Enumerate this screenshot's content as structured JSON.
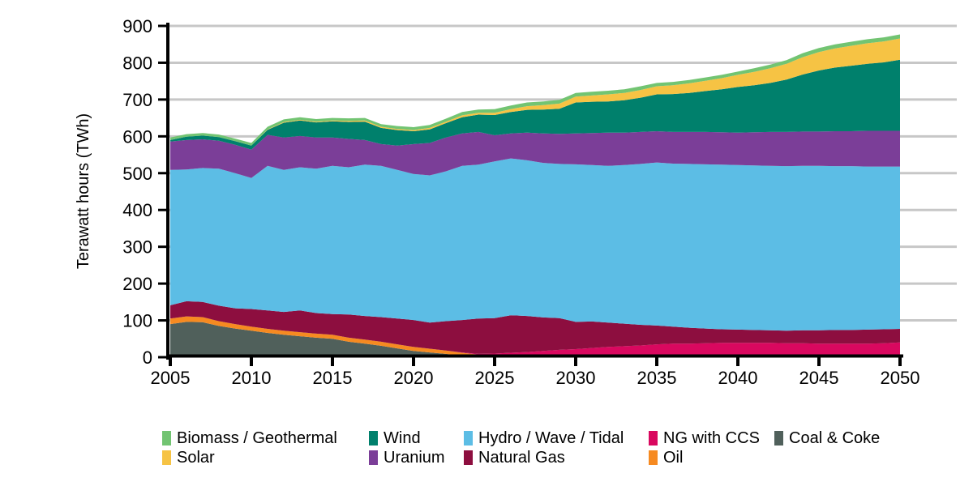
{
  "axes": {
    "y_ticks": [
      0,
      100,
      200,
      300,
      400,
      500,
      600,
      700,
      800,
      900
    ],
    "x_ticks": [
      2005,
      2010,
      2015,
      2020,
      2025,
      2030,
      2035,
      2040,
      2045,
      2050
    ],
    "grid_color": "#C7C7C7",
    "axis_color": "#000000"
  },
  "chart_data": {
    "type": "area",
    "stacked": true,
    "title": "",
    "xlabel": "",
    "ylabel": "Terawatt hours (TWh)",
    "ylim": [
      0,
      900
    ],
    "xlim": [
      2005,
      2050
    ],
    "grid": "horizontal",
    "legend_position": "bottom",
    "stack_order": "bottom to top as listed",
    "x": [
      2005,
      2006,
      2007,
      2008,
      2009,
      2010,
      2011,
      2012,
      2013,
      2014,
      2015,
      2016,
      2017,
      2018,
      2019,
      2020,
      2021,
      2022,
      2023,
      2024,
      2025,
      2026,
      2027,
      2028,
      2029,
      2030,
      2031,
      2032,
      2033,
      2034,
      2035,
      2036,
      2037,
      2038,
      2039,
      2040,
      2041,
      2042,
      2043,
      2044,
      2045,
      2046,
      2047,
      2048,
      2049,
      2050
    ],
    "series": [
      {
        "id": "coal-coke",
        "name": "Coal & Coke",
        "color": "#50605B",
        "values": [
          90,
          96,
          95,
          85,
          78,
          72,
          66,
          61,
          57,
          53,
          50,
          42,
          37,
          31,
          24,
          17,
          13,
          9,
          4,
          0,
          0,
          0,
          0,
          0,
          0,
          0,
          0,
          0,
          0,
          0,
          0,
          0,
          0,
          0,
          0,
          0,
          0,
          0,
          0,
          0,
          0,
          0,
          0,
          0,
          0,
          0
        ]
      },
      {
        "id": "oil",
        "name": "Oil",
        "color": "#F68A21",
        "values": [
          15,
          15,
          14,
          13,
          12,
          11,
          11,
          11,
          11,
          11,
          11,
          11,
          11,
          11,
          11,
          11,
          10,
          9,
          8,
          7,
          6,
          5,
          5,
          5,
          5,
          4,
          4,
          4,
          4,
          4,
          4,
          4,
          3,
          3,
          3,
          3,
          3,
          3,
          3,
          3,
          3,
          3,
          3,
          3,
          4,
          5
        ]
      },
      {
        "id": "ng-with-ccs",
        "name": "NG with CCS",
        "color": "#D9085F",
        "values": [
          0,
          0,
          0,
          0,
          0,
          0,
          0,
          0,
          0,
          0,
          0,
          0,
          0,
          0,
          0,
          0,
          0,
          0,
          1,
          2,
          4,
          7,
          9,
          12,
          15,
          18,
          21,
          24,
          26,
          28,
          31,
          33,
          34,
          35,
          36,
          36,
          36,
          36,
          35,
          35,
          34,
          34,
          34,
          34,
          34,
          35
        ]
      },
      {
        "id": "natural-gas",
        "name": "Natural Gas",
        "color": "#8D0E3F",
        "values": [
          36,
          41,
          41,
          42,
          43,
          48,
          50,
          51,
          59,
          56,
          56,
          63,
          64,
          67,
          70,
          73,
          71,
          80,
          88,
          96,
          96,
          102,
          98,
          91,
          86,
          74,
          72,
          66,
          61,
          56,
          51,
          46,
          43,
          40,
          37,
          36,
          35,
          34,
          34,
          35,
          36,
          37,
          37,
          38,
          38,
          37
        ]
      },
      {
        "id": "hydro-wave-tidal",
        "name": "Hydro / Wave / Tidal",
        "color": "#5CBDE5",
        "values": [
          368,
          358,
          364,
          372,
          367,
          356,
          393,
          386,
          389,
          392,
          403,
          400,
          411,
          411,
          404,
          397,
          400,
          407,
          419,
          418,
          426,
          426,
          423,
          420,
          419,
          428,
          425,
          426,
          431,
          437,
          443,
          443,
          445,
          446,
          447,
          447,
          447,
          447,
          447,
          447,
          447,
          445,
          445,
          443,
          442,
          441
        ]
      },
      {
        "id": "uranium",
        "name": "Uranium",
        "color": "#7B3E98",
        "values": [
          77,
          80,
          78,
          76,
          77,
          77,
          84,
          88,
          85,
          85,
          77,
          77,
          67,
          59,
          66,
          81,
          88,
          92,
          88,
          89,
          71,
          68,
          75,
          80,
          82,
          84,
          87,
          90,
          88,
          87,
          85,
          86,
          87,
          88,
          88,
          88,
          90,
          92,
          93,
          93,
          93,
          95,
          95,
          97,
          97,
          97
        ]
      },
      {
        "id": "wind",
        "name": "Wind",
        "color": "#00806C",
        "values": [
          4,
          9,
          10,
          10,
          10,
          11,
          14,
          40,
          42,
          41,
          44,
          46,
          50,
          44,
          42,
          35,
          37,
          39,
          44,
          47,
          55,
          58,
          62,
          65,
          68,
          84,
          85,
          85,
          88,
          93,
          100,
          103,
          106,
          111,
          117,
          124,
          128,
          133,
          142,
          155,
          166,
          173,
          178,
          182,
          186,
          193
        ]
      },
      {
        "id": "solar",
        "name": "Solar",
        "color": "#F6C344",
        "values": [
          0,
          0,
          0,
          0,
          0,
          0,
          1,
          2,
          2,
          2,
          2,
          3,
          3,
          3,
          3,
          3,
          4,
          4,
          5,
          5,
          6,
          8,
          10,
          12,
          14,
          16,
          17,
          19,
          20,
          21,
          22,
          24,
          26,
          28,
          30,
          33,
          36,
          40,
          43,
          47,
          50,
          52,
          54,
          56,
          57,
          58
        ]
      },
      {
        "id": "biomass-geothermal",
        "name": "Biomass / Geothermal",
        "color": "#72C472",
        "values": [
          7,
          7,
          7,
          7,
          7,
          7,
          7,
          7,
          7,
          7,
          7,
          7,
          7,
          7,
          8,
          8,
          8,
          8,
          9,
          9,
          10,
          10,
          10,
          10,
          10,
          10,
          10,
          10,
          10,
          10,
          9,
          9,
          9,
          9,
          9,
          9,
          10,
          10,
          10,
          11,
          11,
          11,
          11,
          11,
          11,
          11
        ]
      }
    ]
  },
  "legend": {
    "columns": [
      {
        "items": [
          {
            "id": "biomass-geothermal",
            "label": "Biomass / Geothermal",
            "color": "#72C472"
          },
          {
            "id": "solar",
            "label": "Solar",
            "color": "#F6C344"
          }
        ]
      },
      {
        "items": [
          {
            "id": "wind",
            "label": "Wind",
            "color": "#00806C"
          },
          {
            "id": "uranium",
            "label": "Uranium",
            "color": "#7B3E98"
          }
        ]
      },
      {
        "items": [
          {
            "id": "hydro-wave-tidal",
            "label": "Hydro / Wave / Tidal",
            "color": "#5CBDE5"
          },
          {
            "id": "natural-gas",
            "label": "Natural Gas",
            "color": "#8D0E3F"
          }
        ]
      },
      {
        "items": [
          {
            "id": "ng-with-ccs",
            "label": "NG with CCS",
            "color": "#D9085F"
          },
          {
            "id": "oil",
            "label": "Oil",
            "color": "#F68A21"
          }
        ]
      },
      {
        "items": [
          {
            "id": "coal-coke",
            "label": "Coal & Coke",
            "color": "#50605B"
          }
        ]
      }
    ]
  }
}
